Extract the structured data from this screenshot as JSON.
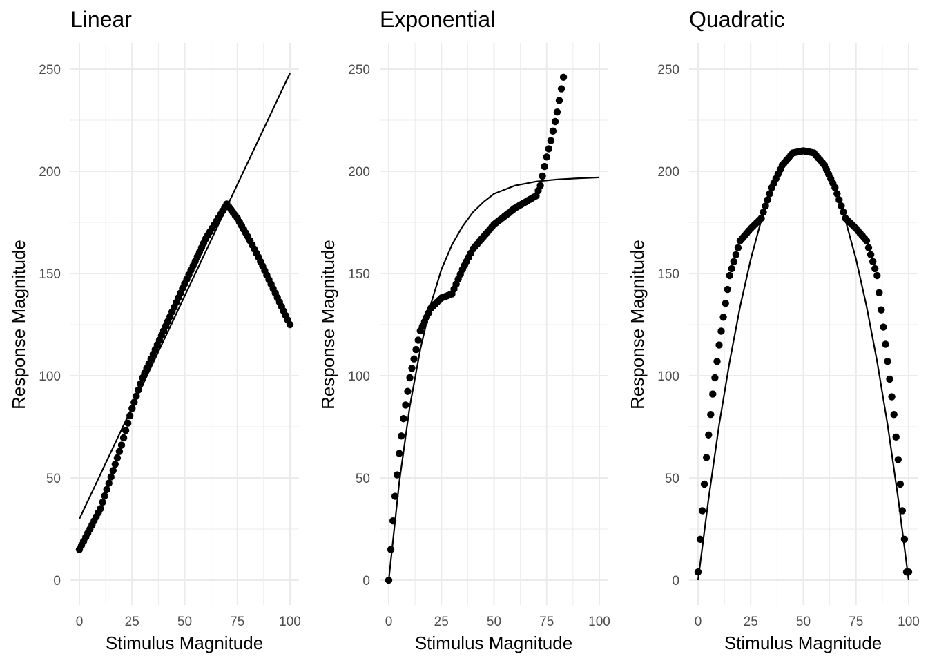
{
  "chart_data": [
    {
      "type": "scatter",
      "title": "Linear",
      "xlabel": "Stimulus Magnitude",
      "ylabel": "Response Magnitude",
      "xlim": [
        0,
        100
      ],
      "ylim": [
        0,
        250
      ],
      "x_ticks": [
        0,
        25,
        50,
        75,
        100
      ],
      "y_ticks": [
        0,
        50,
        100,
        150,
        200,
        250
      ],
      "grid": true,
      "colors": {
        "points": "#000000",
        "line": "#000000",
        "grid": "#ebebeb"
      },
      "fit_line": {
        "x": [
          0,
          100
        ],
        "y": [
          30,
          248
        ]
      },
      "series": [
        {
          "x": [
            0,
            10,
            20,
            25,
            30,
            40,
            50,
            60,
            70,
            75,
            80,
            85,
            90,
            95,
            100
          ],
          "y": [
            15,
            35,
            66,
            84,
            99,
            122,
            145,
            167,
            184,
            177,
            168,
            158,
            147,
            136,
            125
          ]
        }
      ]
    },
    {
      "type": "scatter",
      "title": "Exponential",
      "xlabel": "Stimulus Magnitude",
      "ylabel": "Response Magnitude",
      "xlim": [
        0,
        100
      ],
      "ylim": [
        0,
        250
      ],
      "x_ticks": [
        0,
        25,
        50,
        75,
        100
      ],
      "y_ticks": [
        0,
        50,
        100,
        150,
        200,
        250
      ],
      "grid": true,
      "colors": {
        "points": "#000000",
        "line": "#000000",
        "grid": "#ebebeb"
      },
      "fit_line": {
        "x": [
          0,
          5,
          10,
          15,
          20,
          25,
          30,
          35,
          40,
          45,
          50,
          55,
          60,
          65,
          70,
          75,
          80,
          85,
          90,
          95,
          100
        ],
        "y": [
          0,
          48,
          85,
          113,
          135,
          152,
          164,
          173,
          180,
          185,
          189,
          191,
          193,
          194,
          195,
          195.5,
          196,
          196.3,
          196.6,
          196.8,
          197
        ]
      },
      "series": [
        {
          "x": [
            0,
            1,
            2,
            3,
            5,
            7,
            10,
            15,
            20,
            25,
            30,
            35,
            40,
            50,
            60,
            70,
            72,
            75,
            77,
            80,
            83
          ],
          "y": [
            0,
            15,
            29,
            41,
            62,
            79,
            99,
            122,
            133,
            138,
            140,
            152,
            162,
            174,
            182,
            188,
            193,
            207,
            215,
            229,
            246
          ]
        }
      ]
    },
    {
      "type": "scatter",
      "title": "Quadratic",
      "xlabel": "Stimulus Magnitude",
      "ylabel": "Response Magnitude",
      "xlim": [
        0,
        100
      ],
      "ylim": [
        0,
        250
      ],
      "x_ticks": [
        0,
        25,
        50,
        75,
        100
      ],
      "y_ticks": [
        0,
        50,
        100,
        150,
        200,
        250
      ],
      "grid": true,
      "colors": {
        "points": "#000000",
        "line": "#000000",
        "grid": "#ebebeb"
      },
      "fit_line": {
        "x": [
          0,
          5,
          10,
          15,
          20,
          25,
          30,
          35,
          40,
          45,
          50,
          55,
          60,
          65,
          70,
          75,
          80,
          85,
          90,
          95,
          100
        ],
        "y": [
          0,
          40,
          76,
          107,
          134,
          157,
          176,
          191,
          202,
          208,
          210,
          208,
          202,
          191,
          176,
          157,
          134,
          107,
          76,
          40,
          0
        ]
      },
      "series": [
        {
          "x": [
            0,
            1,
            2,
            3,
            4,
            5,
            7,
            10,
            15,
            20,
            25,
            30,
            35,
            40,
            45,
            50,
            55,
            60,
            65,
            70,
            75,
            80,
            85,
            90,
            93,
            95,
            96,
            97,
            98,
            99,
            100
          ],
          "y": [
            4,
            20,
            34,
            47,
            60,
            71,
            91,
            115,
            149,
            166,
            172,
            177,
            192,
            203,
            209,
            210,
            209,
            203,
            192,
            177,
            172,
            166,
            149,
            107,
            81,
            59,
            47,
            34,
            20,
            4,
            4
          ]
        }
      ]
    }
  ]
}
